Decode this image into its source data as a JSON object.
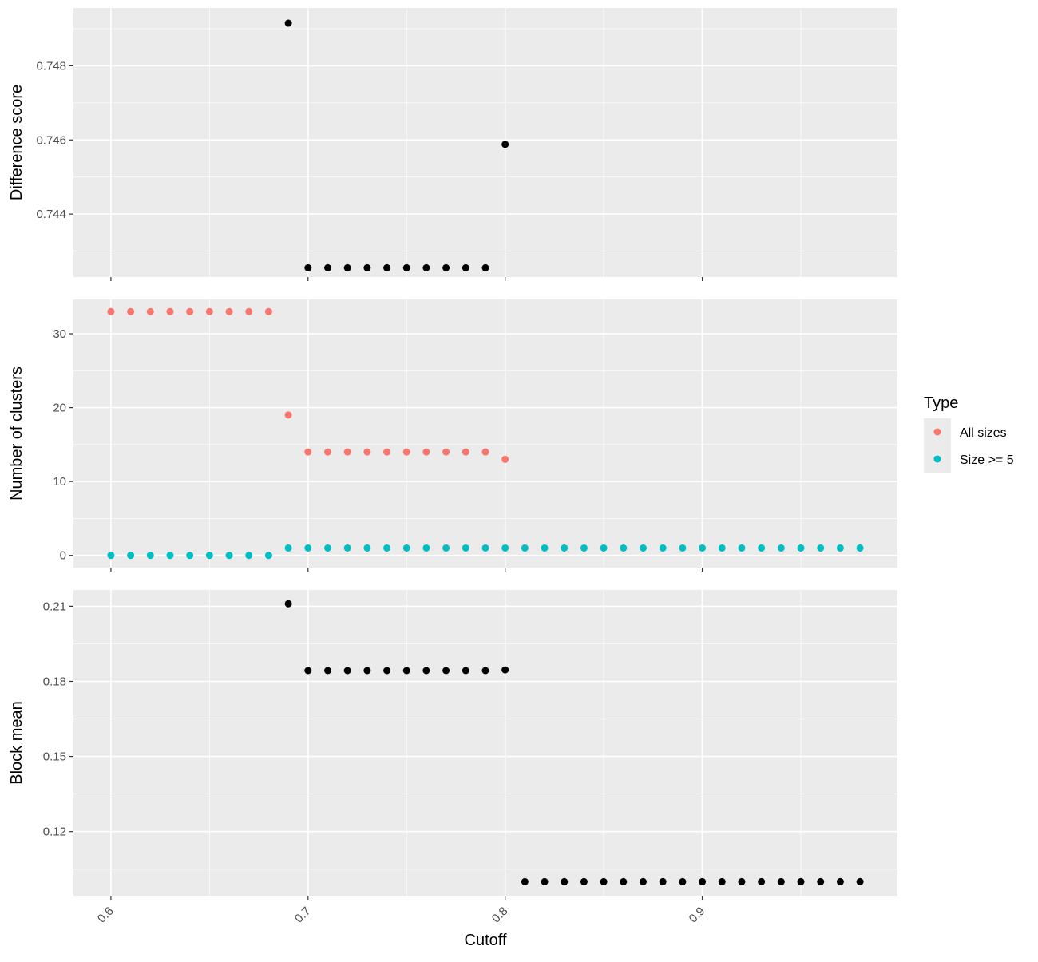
{
  "chart_data": [
    {
      "type": "scatter",
      "ylabel": "Difference score",
      "yticks": [
        0.744,
        0.746,
        0.748
      ],
      "ytick_labels": [
        "0.744",
        "0.746",
        "0.748"
      ],
      "ylim": [
        0.7423,
        0.74956
      ],
      "grid": true,
      "series": [
        {
          "color": "#000000",
          "x": [
            0.69,
            0.7,
            0.71,
            0.72,
            0.73,
            0.74,
            0.75,
            0.76,
            0.77,
            0.78,
            0.79,
            0.8
          ],
          "y": [
            0.74915,
            0.74255,
            0.74255,
            0.74255,
            0.74255,
            0.74255,
            0.74255,
            0.74255,
            0.74255,
            0.74255,
            0.74255,
            0.74588
          ]
        }
      ]
    },
    {
      "type": "scatter",
      "ylabel": "Number of clusters",
      "yticks": [
        0,
        10,
        20,
        30
      ],
      "ytick_labels": [
        "0",
        "10",
        "20",
        "30"
      ],
      "ylim": [
        -1.65,
        34.65
      ],
      "grid": true,
      "legend": {
        "title": "Type",
        "position": "right",
        "entries": [
          {
            "label": "All sizes",
            "color": "#F8766D"
          },
          {
            "label": "Size >= 5",
            "color": "#00BFC4"
          }
        ]
      },
      "series": [
        {
          "name": "All sizes",
          "color": "#F8766D",
          "x": [
            0.6,
            0.61,
            0.62,
            0.63,
            0.64,
            0.65,
            0.66,
            0.67,
            0.68,
            0.69,
            0.7,
            0.71,
            0.72,
            0.73,
            0.74,
            0.75,
            0.76,
            0.77,
            0.78,
            0.79,
            0.8
          ],
          "y": [
            33,
            33,
            33,
            33,
            33,
            33,
            33,
            33,
            33,
            19,
            14,
            14,
            14,
            14,
            14,
            14,
            14,
            14,
            14,
            14,
            13
          ]
        },
        {
          "name": "Size >= 5",
          "color": "#00BFC4",
          "x": [
            0.6,
            0.61,
            0.62,
            0.63,
            0.64,
            0.65,
            0.66,
            0.67,
            0.68,
            0.69,
            0.7,
            0.71,
            0.72,
            0.73,
            0.74,
            0.75,
            0.76,
            0.77,
            0.78,
            0.79,
            0.8,
            0.81,
            0.82,
            0.83,
            0.84,
            0.85,
            0.86,
            0.87,
            0.88,
            0.89,
            0.9,
            0.91,
            0.92,
            0.93,
            0.94,
            0.95,
            0.96,
            0.97,
            0.98
          ],
          "y": [
            0,
            0,
            0,
            0,
            0,
            0,
            0,
            0,
            0,
            1,
            1,
            1,
            1,
            1,
            1,
            1,
            1,
            1,
            1,
            1,
            1,
            1,
            1,
            1,
            1,
            1,
            1,
            1,
            1,
            1,
            1,
            1,
            1,
            1,
            1,
            1,
            1,
            1,
            1
          ]
        }
      ]
    },
    {
      "type": "scatter",
      "ylabel": "Block mean",
      "yticks": [
        0.12,
        0.15,
        0.18,
        0.21
      ],
      "ytick_labels": [
        "0.12",
        "0.15",
        "0.18",
        "0.21"
      ],
      "ylim": [
        0.0944,
        0.2165
      ],
      "grid": true,
      "series": [
        {
          "color": "#000000",
          "x": [
            0.69,
            0.7,
            0.71,
            0.72,
            0.73,
            0.74,
            0.75,
            0.76,
            0.77,
            0.78,
            0.79,
            0.8,
            0.81,
            0.82,
            0.83,
            0.84,
            0.85,
            0.86,
            0.87,
            0.88,
            0.89,
            0.9,
            0.91,
            0.92,
            0.93,
            0.94,
            0.95,
            0.96,
            0.97,
            0.98
          ],
          "y": [
            0.211,
            0.1843,
            0.1843,
            0.1843,
            0.1843,
            0.1843,
            0.1843,
            0.1843,
            0.1843,
            0.1843,
            0.1843,
            0.1846,
            0.1,
            0.1,
            0.1,
            0.1,
            0.1,
            0.1,
            0.1,
            0.1,
            0.1,
            0.1,
            0.1,
            0.1,
            0.1,
            0.1,
            0.1,
            0.1,
            0.1,
            0.1
          ]
        }
      ]
    }
  ],
  "x_axis": {
    "label": "Cutoff",
    "ticks": [
      0.6,
      0.7,
      0.8,
      0.9
    ],
    "tick_labels": [
      "0.6",
      "0.7",
      "0.8",
      "0.9"
    ],
    "xlim": [
      0.581,
      0.999
    ]
  }
}
